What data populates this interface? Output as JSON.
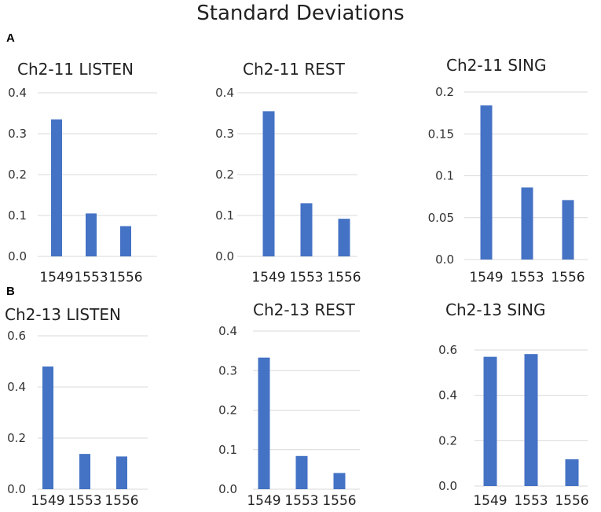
{
  "title": "Standard Deviations",
  "panels": [
    {
      "letter": "A"
    },
    {
      "letter": "B"
    }
  ],
  "colors": {
    "bar": "#4472c4",
    "grid": "#d9d9d9"
  },
  "chart_data": [
    {
      "type": "bar",
      "title": "Ch2-11 LISTEN",
      "categories": [
        "1549",
        "1553",
        "1556"
      ],
      "values": [
        0.335,
        0.105,
        0.074
      ],
      "ylim": [
        0,
        0.4
      ],
      "yticks": [
        0,
        0.1,
        0.2,
        0.3,
        0.4
      ],
      "ytick_labels": [
        "0.0",
        "0.1",
        "0.2",
        "0.3",
        "0.4"
      ]
    },
    {
      "type": "bar",
      "title": "Ch2-11 REST",
      "categories": [
        "1549",
        "1553",
        "1556"
      ],
      "values": [
        0.355,
        0.13,
        0.092
      ],
      "ylim": [
        0,
        0.4
      ],
      "yticks": [
        0,
        0.1,
        0.2,
        0.3,
        0.4
      ],
      "ytick_labels": [
        "0.0",
        "0.1",
        "0.2",
        "0.3",
        "0.4"
      ]
    },
    {
      "type": "bar",
      "title": "Ch2-11 SING",
      "categories": [
        "1549",
        "1553",
        "1556"
      ],
      "values": [
        0.184,
        0.086,
        0.071
      ],
      "ylim": [
        0,
        0.2
      ],
      "yticks": [
        0,
        0.05,
        0.1,
        0.15,
        0.2
      ],
      "ytick_labels": [
        "0.0",
        "0.05",
        "0.1",
        "0.15",
        "0.2"
      ]
    },
    {
      "type": "bar",
      "title": "Ch2-13 LISTEN",
      "categories": [
        "1549",
        "1553",
        "1556"
      ],
      "values": [
        0.48,
        0.138,
        0.128
      ],
      "ylim": [
        0,
        0.6
      ],
      "yticks": [
        0,
        0.2,
        0.4,
        0.6
      ],
      "ytick_labels": [
        "0.0",
        "0.2",
        "0.4",
        "0.6"
      ]
    },
    {
      "type": "bar",
      "title": "Ch2-13 REST",
      "categories": [
        "1549",
        "1553",
        "1556"
      ],
      "values": [
        0.333,
        0.084,
        0.041
      ],
      "ylim": [
        0,
        0.4
      ],
      "yticks": [
        0,
        0.1,
        0.2,
        0.3,
        0.4
      ],
      "ytick_labels": [
        "0.0",
        "0.1",
        "0.2",
        "0.3",
        "0.4"
      ]
    },
    {
      "type": "bar",
      "title": "Ch2-13 SING",
      "categories": [
        "1549",
        "1553",
        "1556"
      ],
      "values": [
        0.57,
        0.582,
        0.118
      ],
      "ylim": [
        0,
        0.6
      ],
      "yticks": [
        0,
        0.2,
        0.4,
        0.6
      ],
      "ytick_labels": [
        "0.0",
        "0.2",
        "0.4",
        "0.6"
      ]
    }
  ]
}
